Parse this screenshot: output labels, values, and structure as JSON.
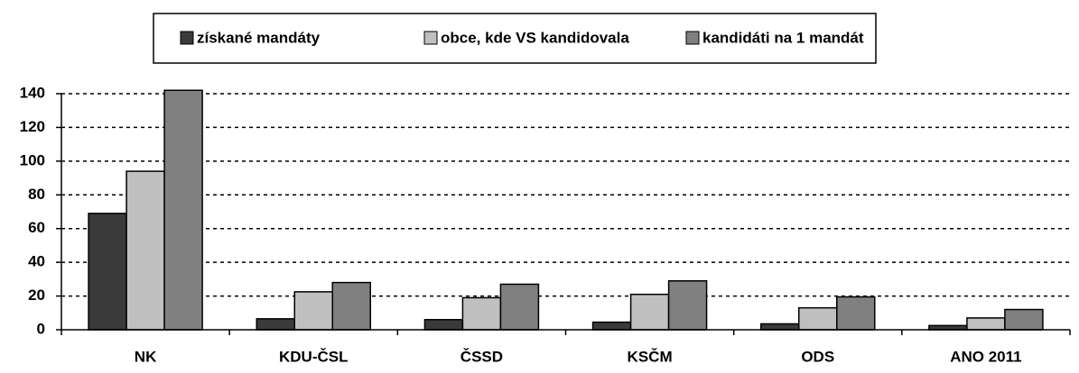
{
  "chart_data": {
    "type": "bar",
    "categories": [
      "NK",
      "KDU-ČSL",
      "ČSSD",
      "KSČM",
      "ODS",
      "ANO 2011"
    ],
    "series": [
      {
        "name": "získané mandáty",
        "color": "#3a3a3a",
        "values": [
          69,
          6.5,
          6,
          4.5,
          3.5,
          2.5
        ]
      },
      {
        "name": "obce, kde VS kandidovala",
        "color": "#c0c0c0",
        "values": [
          94,
          22.5,
          19,
          21,
          13,
          7
        ]
      },
      {
        "name": "kandidáti na 1 mandát",
        "color": "#808080",
        "values": [
          142,
          28,
          27,
          29,
          19.5,
          12
        ]
      }
    ],
    "ylim": [
      0,
      140
    ],
    "yticks": [
      0,
      20,
      40,
      60,
      80,
      100,
      120,
      140
    ],
    "grid": true,
    "legend": "top"
  }
}
